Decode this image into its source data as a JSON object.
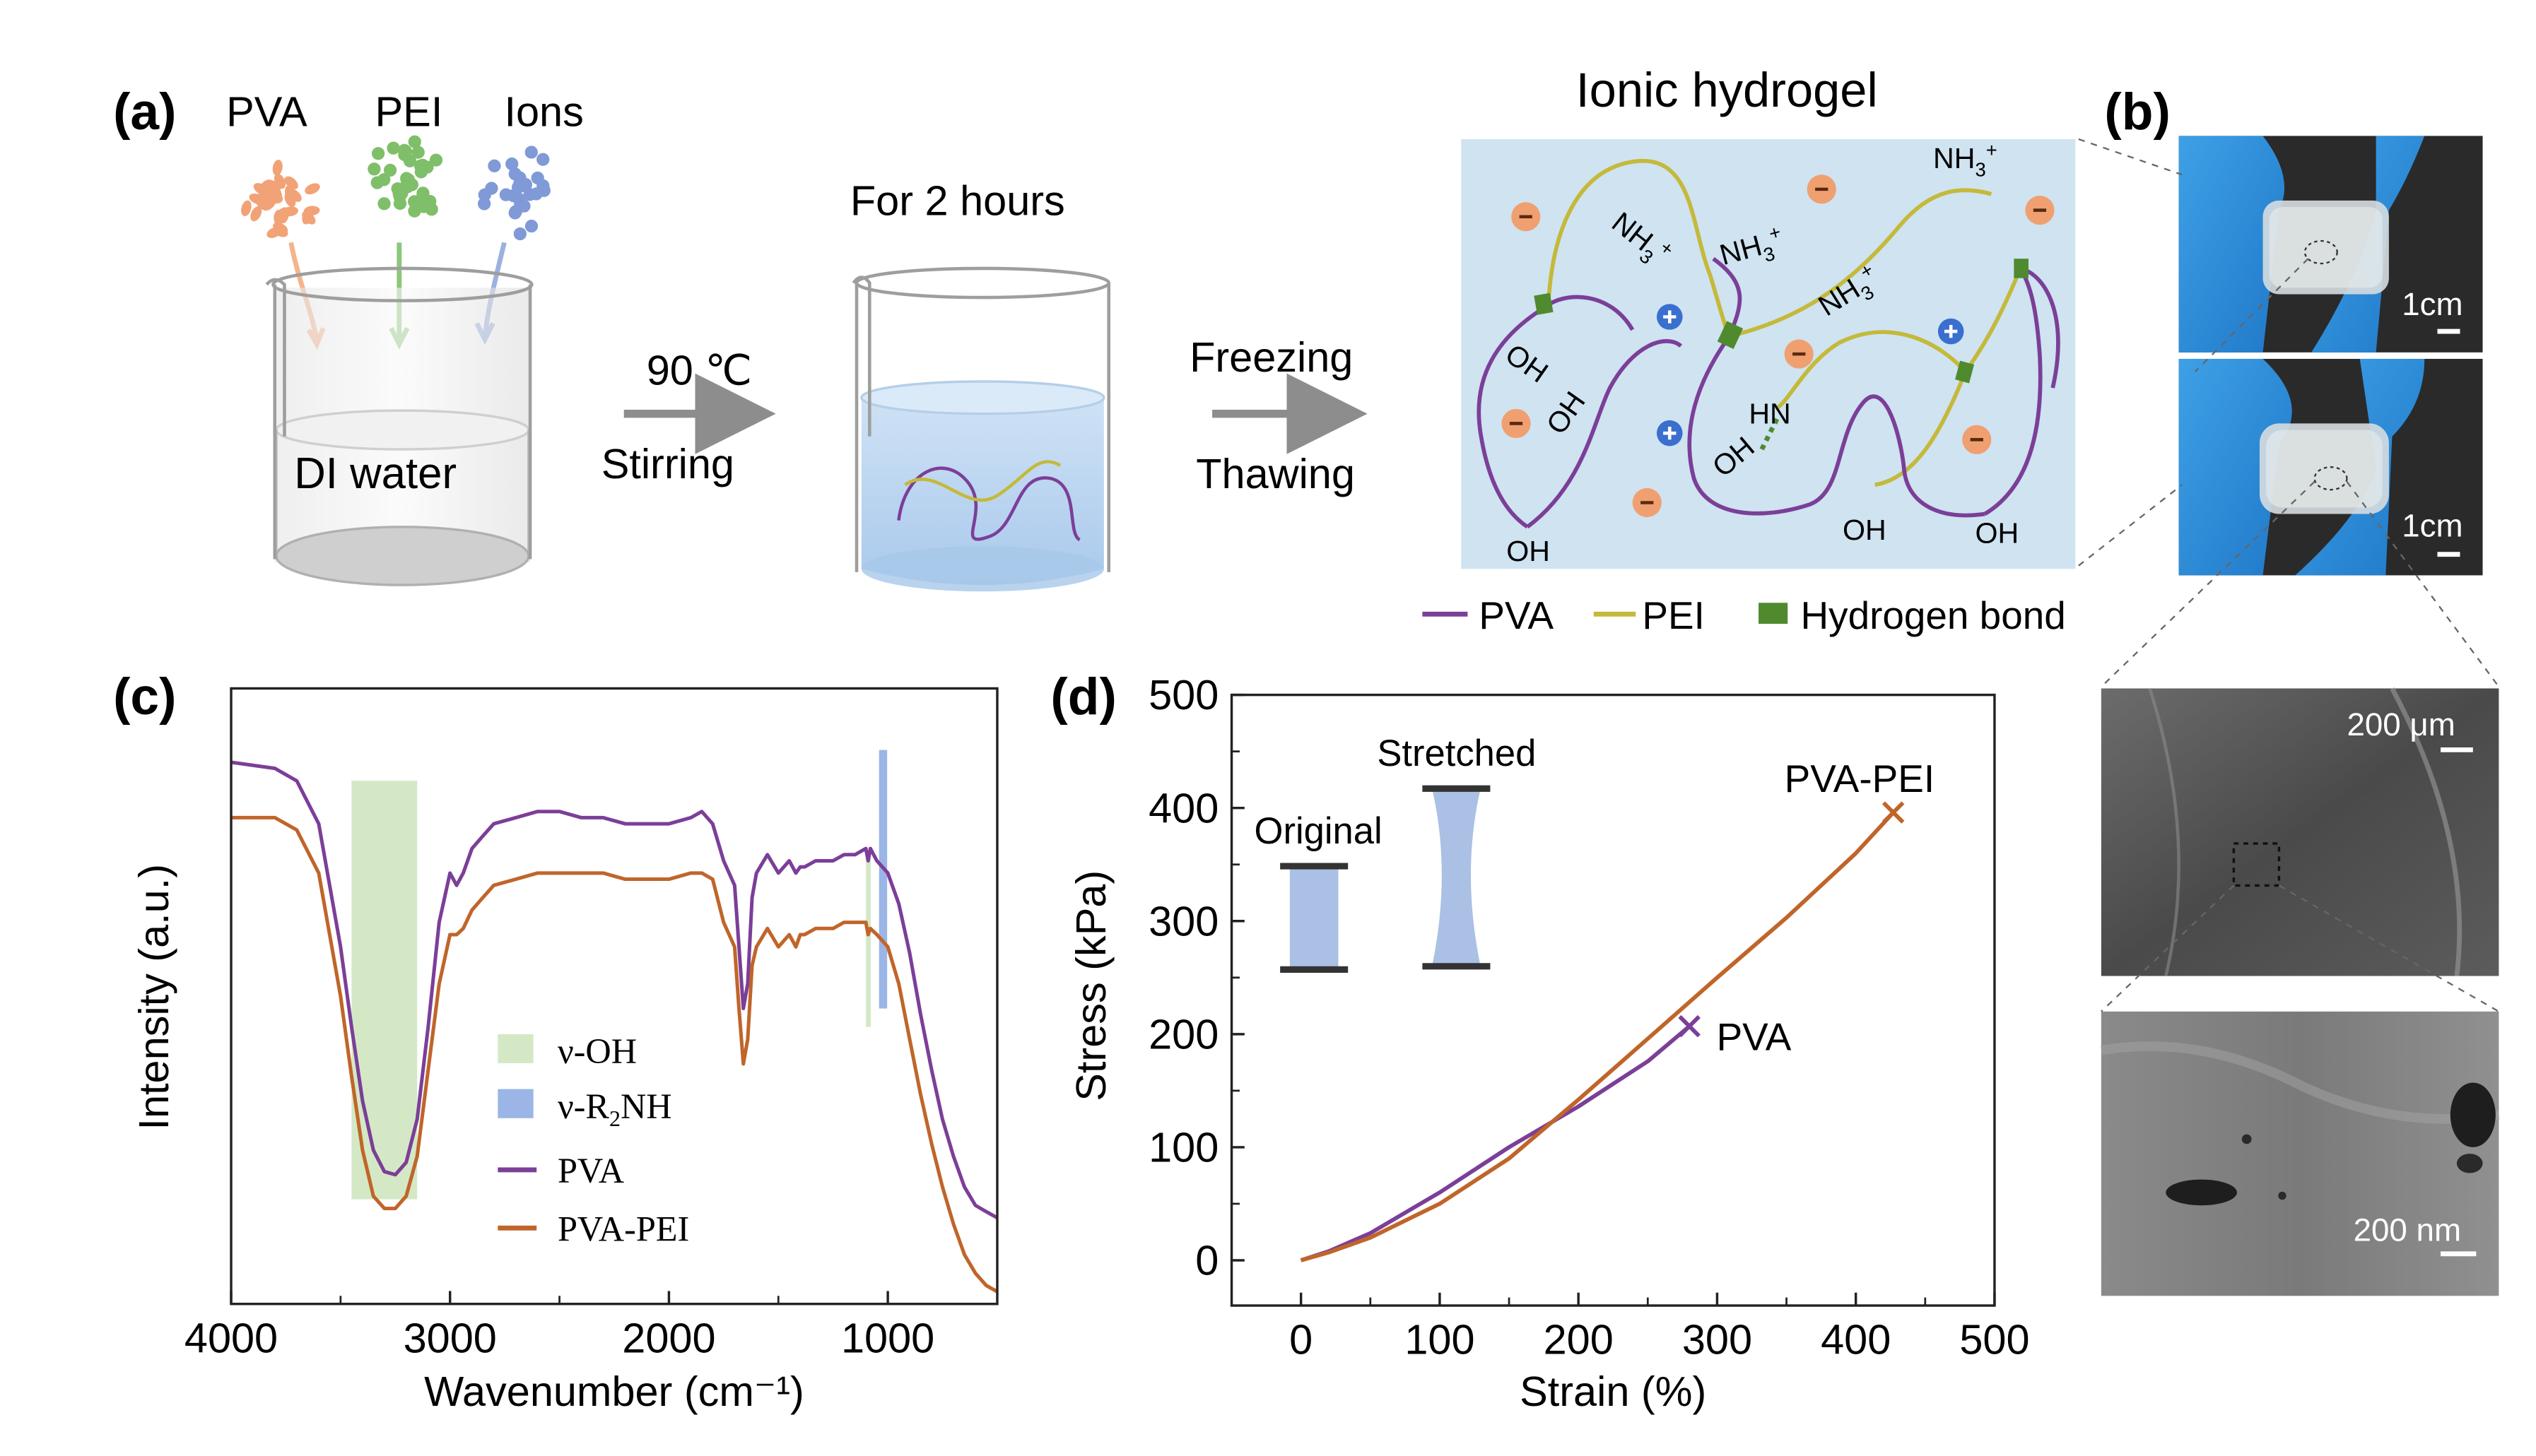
{
  "panel_a": {
    "label": "(a)",
    "reagents": [
      "PVA",
      "PEI",
      "Ions"
    ],
    "beaker1_text": "DI water",
    "step1_top": "90 ℃",
    "step1_bottom": "Stirring",
    "beaker2_title": "For 2 hours",
    "step2_top": "Freezing",
    "step2_bottom": "Thawing",
    "hydrogel_title": "Ionic hydrogel",
    "hydrogel_labels": {
      "nh3": "NH",
      "nh_sub": "3",
      "plus": "+",
      "oh": "OH",
      "hn": "HN"
    },
    "legend": {
      "pva": "PVA",
      "pei": "PEI",
      "hbond": "Hydrogen bond"
    },
    "colors": {
      "pva": "#7b3f98",
      "pei": "#c4b93a",
      "hbond": "#4f8a2f",
      "anion": "#f0a070",
      "cation": "#3a6fcf",
      "panel_bg": "#cfe3f1"
    }
  },
  "panel_b": {
    "label": "(b)",
    "scale1": "1cm",
    "scale2": "1cm",
    "sem1_scale": "200 μm",
    "sem2_scale": "200 nm"
  },
  "chart_c": {
    "label": "(c)",
    "legend_oh": "ν-OH",
    "legend_nh_prefix": "ν-R",
    "legend_nh_sub": "2",
    "legend_nh_suffix": "NH",
    "legend_pva": "PVA",
    "legend_pvapei": "PVA-PEI"
  },
  "chart_d": {
    "label": "(d)",
    "inset_original": "Original",
    "inset_stretched": "Stretched",
    "end_label_pva": "PVA",
    "end_label_pvapei": "PVA-PEI"
  },
  "chart_data": [
    {
      "type": "line",
      "title": "",
      "xlabel": "Wavenumber (cm⁻¹)",
      "ylabel": "Intensity (a.u.)",
      "xlim": [
        4000,
        500
      ],
      "xticks": [
        4000,
        3000,
        2000,
        1000
      ],
      "ylim": [
        0,
        1
      ],
      "bands": [
        {
          "name": "ν-OH",
          "from": 3450,
          "to": 3150,
          "color": "#d4e8c6"
        },
        {
          "name": "ν-OH-line",
          "from": 1100,
          "to": 1080,
          "color": "#d4e8c6"
        },
        {
          "name": "ν-R2NH",
          "from": 1040,
          "to": 1020,
          "color": "#9bb5e6"
        }
      ],
      "series": [
        {
          "name": "PVA",
          "color": "#7b3f98",
          "x": [
            4000,
            3800,
            3700,
            3600,
            3500,
            3450,
            3400,
            3350,
            3300,
            3250,
            3200,
            3150,
            3100,
            3050,
            3000,
            2970,
            2940,
            2900,
            2850,
            2800,
            2700,
            2600,
            2500,
            2400,
            2300,
            2200,
            2100,
            2000,
            1900,
            1850,
            1800,
            1750,
            1700,
            1680,
            1660,
            1640,
            1620,
            1600,
            1550,
            1500,
            1450,
            1420,
            1400,
            1380,
            1330,
            1300,
            1250,
            1200,
            1150,
            1100,
            1090,
            1080,
            1050,
            1000,
            950,
            900,
            850,
            800,
            750,
            700,
            650,
            600,
            550,
            500
          ],
          "y": [
            0.88,
            0.87,
            0.85,
            0.78,
            0.58,
            0.45,
            0.33,
            0.25,
            0.215,
            0.21,
            0.23,
            0.3,
            0.45,
            0.62,
            0.7,
            0.68,
            0.7,
            0.74,
            0.76,
            0.78,
            0.79,
            0.8,
            0.8,
            0.79,
            0.79,
            0.78,
            0.78,
            0.78,
            0.79,
            0.8,
            0.78,
            0.72,
            0.68,
            0.58,
            0.48,
            0.52,
            0.66,
            0.7,
            0.73,
            0.7,
            0.72,
            0.7,
            0.71,
            0.71,
            0.72,
            0.72,
            0.72,
            0.73,
            0.73,
            0.74,
            0.72,
            0.74,
            0.72,
            0.7,
            0.65,
            0.57,
            0.47,
            0.38,
            0.3,
            0.24,
            0.19,
            0.16,
            0.15,
            0.14
          ]
        },
        {
          "name": "PVA-PEI",
          "color": "#c0652a",
          "x": [
            4000,
            3800,
            3700,
            3600,
            3500,
            3450,
            3400,
            3350,
            3300,
            3250,
            3200,
            3150,
            3100,
            3050,
            3000,
            2970,
            2940,
            2900,
            2850,
            2800,
            2700,
            2600,
            2500,
            2400,
            2300,
            2200,
            2100,
            2000,
            1900,
            1850,
            1800,
            1750,
            1700,
            1680,
            1660,
            1640,
            1620,
            1600,
            1550,
            1500,
            1450,
            1420,
            1400,
            1380,
            1330,
            1300,
            1250,
            1200,
            1150,
            1100,
            1090,
            1080,
            1050,
            1000,
            950,
            900,
            850,
            800,
            750,
            700,
            650,
            600,
            550,
            500
          ],
          "y": [
            0.79,
            0.79,
            0.77,
            0.7,
            0.5,
            0.37,
            0.25,
            0.175,
            0.155,
            0.155,
            0.175,
            0.24,
            0.38,
            0.52,
            0.6,
            0.6,
            0.61,
            0.64,
            0.66,
            0.68,
            0.69,
            0.7,
            0.7,
            0.7,
            0.7,
            0.69,
            0.69,
            0.69,
            0.7,
            0.7,
            0.69,
            0.62,
            0.58,
            0.48,
            0.39,
            0.43,
            0.55,
            0.58,
            0.61,
            0.58,
            0.6,
            0.58,
            0.6,
            0.6,
            0.61,
            0.61,
            0.61,
            0.62,
            0.62,
            0.62,
            0.6,
            0.61,
            0.6,
            0.58,
            0.52,
            0.43,
            0.34,
            0.26,
            0.19,
            0.13,
            0.08,
            0.05,
            0.03,
            0.02
          ]
        }
      ]
    },
    {
      "type": "line",
      "title": "",
      "xlabel": "Strain (%)",
      "ylabel": "Stress (kPa)",
      "xlim": [
        -50,
        500
      ],
      "ylim": [
        -40,
        500
      ],
      "xticks": [
        0,
        100,
        200,
        300,
        400,
        500
      ],
      "yticks": [
        0,
        100,
        200,
        300,
        400,
        500
      ],
      "series": [
        {
          "name": "PVA",
          "color": "#7b3f98",
          "x": [
            0,
            20,
            50,
            100,
            150,
            200,
            250,
            280
          ],
          "y": [
            0,
            8,
            24,
            60,
            100,
            136,
            176,
            207
          ]
        },
        {
          "name": "PVA-PEI",
          "color": "#c0652a",
          "x": [
            0,
            20,
            50,
            100,
            150,
            200,
            250,
            300,
            350,
            400,
            427
          ],
          "y": [
            0,
            7,
            20,
            50,
            90,
            142,
            196,
            250,
            303,
            360,
            396
          ]
        }
      ]
    }
  ]
}
